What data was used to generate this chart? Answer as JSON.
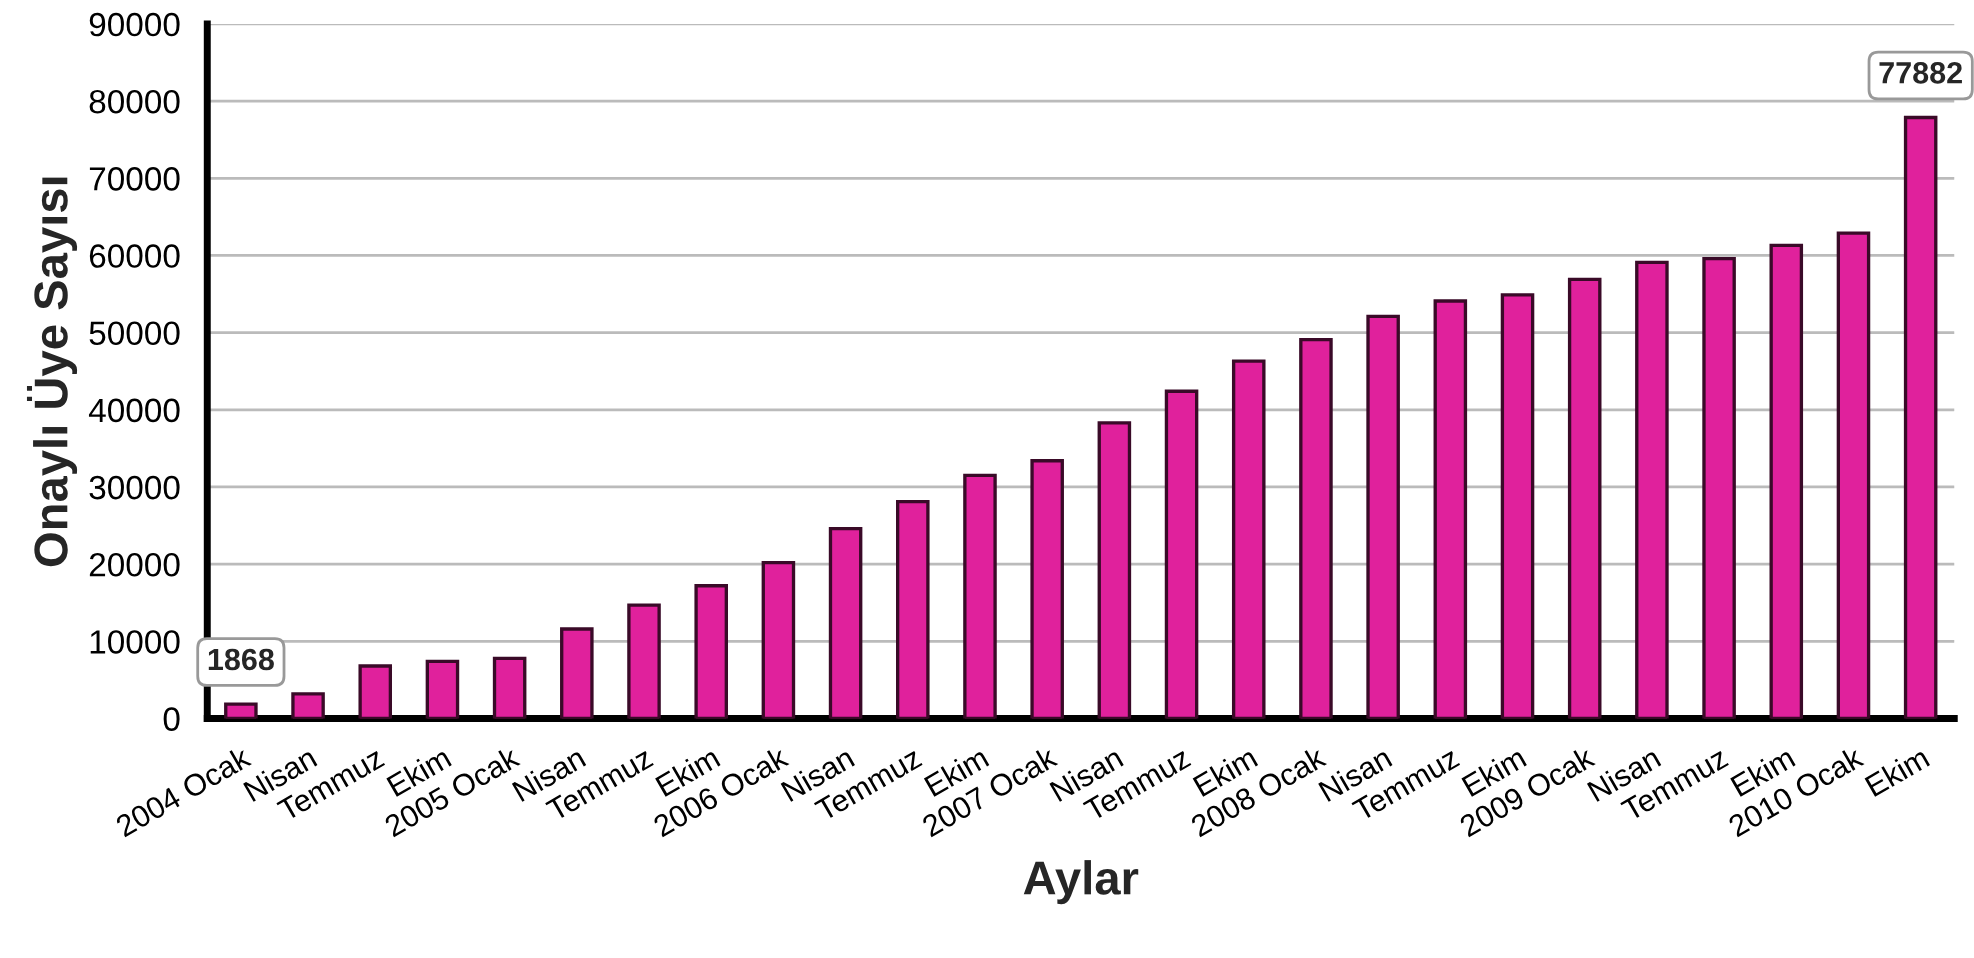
{
  "chart_data": {
    "type": "bar",
    "xlabel": "Aylar",
    "ylabel": "Onaylı Üye Sayısı",
    "categories": [
      "2004 Ocak",
      "Nisan",
      "Temmuz",
      "Ekim",
      "2005 Ocak",
      "Nisan",
      "Temmuz",
      "Ekim",
      "2006 Ocak",
      "Nisan",
      "Temmuz",
      "Ekim",
      "2007 Ocak",
      "Nisan",
      "Temmuz",
      "Ekim",
      "2008 Ocak",
      "Nisan",
      "Temmuz",
      "Ekim",
      "2009 Ocak",
      "Nisan",
      "Temmuz",
      "Ekim",
      "2010 Ocak",
      "Ekim"
    ],
    "values": [
      1868,
      3200,
      6800,
      7400,
      7800,
      11600,
      14700,
      17200,
      20200,
      24600,
      28100,
      31500,
      33400,
      38300,
      42400,
      46300,
      49100,
      52100,
      54100,
      54900,
      56900,
      59100,
      59600,
      61300,
      62900,
      77882
    ],
    "value_labels": [
      "1868",
      null,
      null,
      null,
      null,
      null,
      null,
      null,
      null,
      null,
      null,
      null,
      null,
      null,
      null,
      null,
      null,
      null,
      null,
      null,
      null,
      null,
      null,
      null,
      null,
      "77882"
    ],
    "color": "#e0219c",
    "ylim": [
      0,
      90000
    ],
    "yticks": [
      0,
      10000,
      20000,
      30000,
      40000,
      50000,
      60000,
      70000,
      80000,
      90000
    ],
    "grid": "y"
  }
}
